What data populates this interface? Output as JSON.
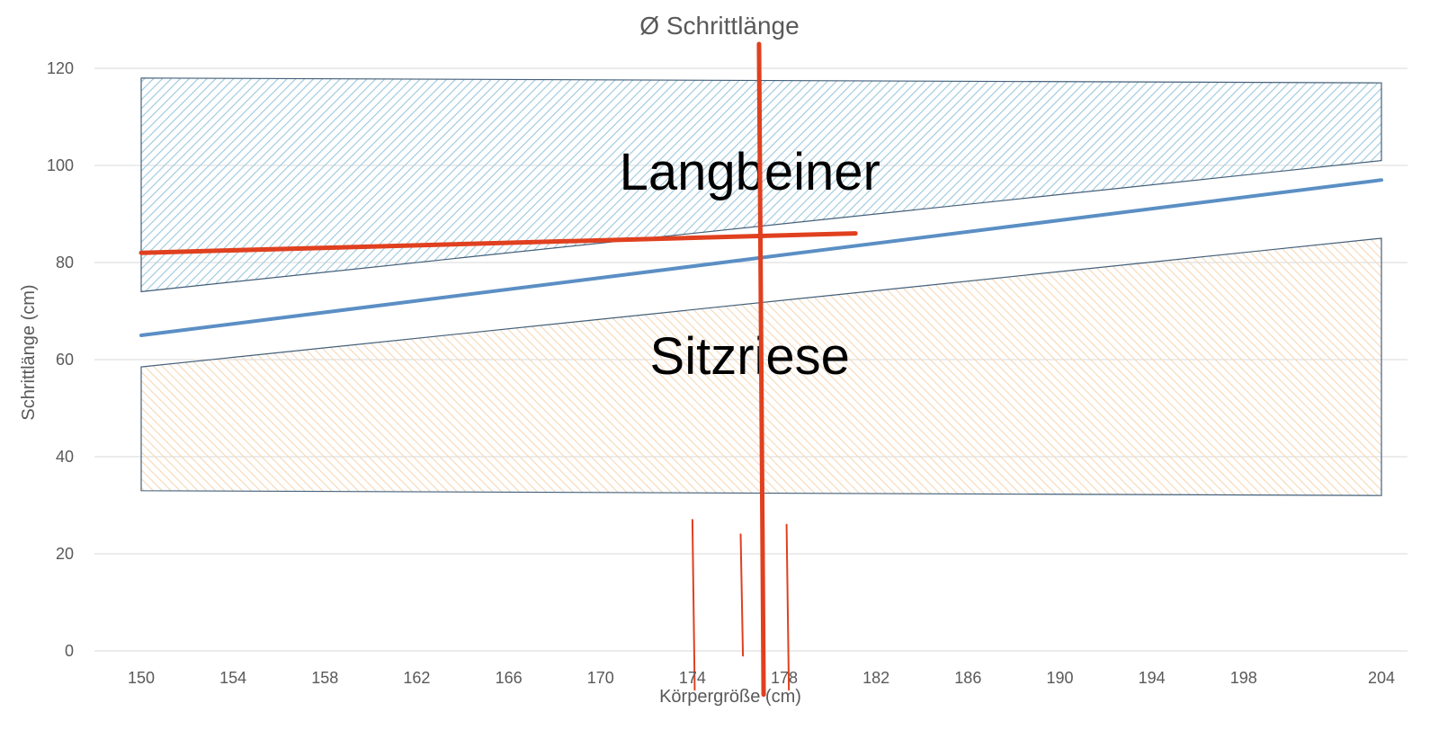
{
  "chart_data": {
    "type": "line",
    "title": "Ø Schrittlänge",
    "xlabel": "Körpergröße (cm)",
    "ylabel": "Schrittlänge (cm)",
    "xlim": [
      150,
      204
    ],
    "ylim": [
      0,
      120
    ],
    "x_ticks": [
      "150",
      "154",
      "158",
      "162",
      "166",
      "170",
      "174",
      "178",
      "182",
      "186",
      "190",
      "194",
      "198",
      "204"
    ],
    "y_ticks": [
      "0",
      "20",
      "40",
      "60",
      "80",
      "100",
      "120"
    ],
    "grid": "horizontal",
    "series": [
      {
        "x": [
          150,
          204
        ],
        "y": [
          65,
          97
        ],
        "color": "#5b8fc4"
      }
    ],
    "regions": [
      {
        "label": "Langbeiner",
        "points": [
          [
            150,
            118
          ],
          [
            204,
            117
          ],
          [
            204,
            101
          ],
          [
            150,
            74
          ]
        ],
        "fill_color": "#9cc7dc",
        "label_at": [
          176.5,
          95
        ]
      },
      {
        "label": "Sitzriese",
        "points": [
          [
            150,
            58.5
          ],
          [
            204,
            85
          ],
          [
            204,
            32
          ],
          [
            150,
            33
          ]
        ],
        "fill_color": "#f6d7b6",
        "label_at": [
          176.5,
          57
        ]
      }
    ],
    "annotations": [
      {
        "kind": "line",
        "color": "#e0401f",
        "weight": "thick",
        "from": [
          150,
          82
        ],
        "to": [
          181.1,
          86
        ]
      },
      {
        "kind": "line",
        "color": "#e0401f",
        "weight": "thick",
        "from": [
          176.9,
          125
        ],
        "to": [
          177.1,
          -9
        ]
      },
      {
        "kind": "line",
        "color": "#e0401f",
        "weight": "thin",
        "from": [
          174,
          27
        ],
        "to": [
          174.1,
          -8
        ]
      },
      {
        "kind": "line",
        "color": "#e0401f",
        "weight": "thin",
        "from": [
          176.1,
          24
        ],
        "to": [
          176.2,
          -1
        ]
      },
      {
        "kind": "line",
        "color": "#e0401f",
        "weight": "thin",
        "from": [
          178.1,
          26
        ],
        "to": [
          178.2,
          -8
        ]
      }
    ]
  }
}
